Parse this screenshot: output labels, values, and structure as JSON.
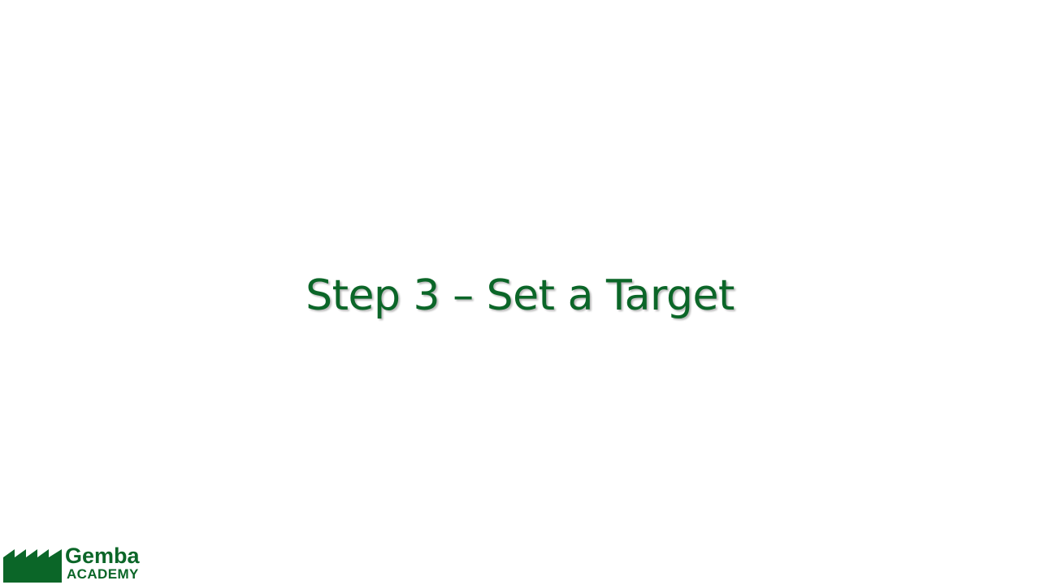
{
  "slide": {
    "title": "Step 3 – Set a Target"
  },
  "logo": {
    "name": "Gemba",
    "subtitle": "ACADEMY",
    "icon": "factory-roof-icon",
    "color": "#0b6628"
  },
  "colors": {
    "title": "#0b6628",
    "background": "#ffffff"
  }
}
